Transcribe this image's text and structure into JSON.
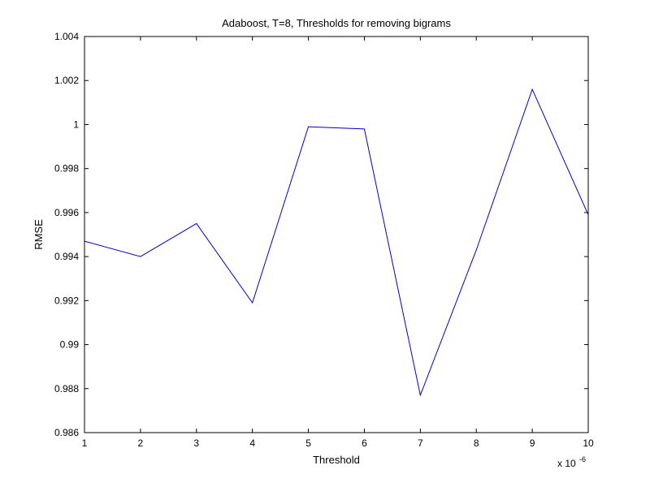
{
  "chart_data": {
    "type": "line",
    "title": "Adaboost, T=8, Thresholds for removing bigrams",
    "xlabel": "Threshold",
    "ylabel": "RMSE",
    "x_multiplier": {
      "prefix": "x 10",
      "exponent": "-6"
    },
    "xlim": [
      1,
      10
    ],
    "ylim": [
      0.986,
      1.004
    ],
    "x_ticks": [
      1,
      2,
      3,
      4,
      5,
      6,
      7,
      8,
      9,
      10
    ],
    "x_tick_labels": [
      "1",
      "2",
      "3",
      "4",
      "5",
      "6",
      "7",
      "8",
      "9",
      "10"
    ],
    "y_ticks": [
      0.986,
      0.988,
      0.99,
      0.992,
      0.994,
      0.996,
      0.998,
      1.0,
      1.002,
      1.004
    ],
    "y_tick_labels": [
      "0.986",
      "0.988",
      "0.99",
      "0.992",
      "0.994",
      "0.996",
      "0.998",
      "1",
      "1.002",
      "1.004"
    ],
    "grid": false,
    "series": [
      {
        "color": "#0000cc",
        "x": [
          1,
          2,
          3,
          4,
          5,
          6,
          7,
          8,
          9,
          10
        ],
        "y": [
          0.9947,
          0.994,
          0.9955,
          0.9919,
          0.9999,
          0.9998,
          0.9877,
          0.9943,
          1.0016,
          0.9959
        ]
      }
    ]
  }
}
